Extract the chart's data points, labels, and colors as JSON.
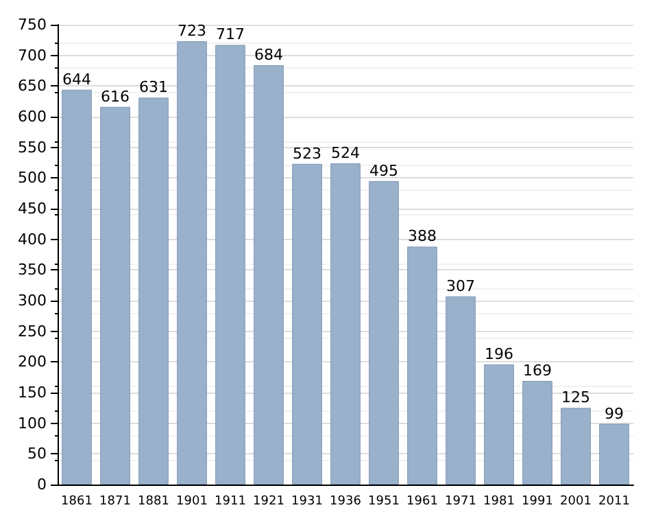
{
  "chart_data": {
    "type": "bar",
    "categories": [
      "1861",
      "1871",
      "1881",
      "1901",
      "1911",
      "1921",
      "1931",
      "1936",
      "1951",
      "1961",
      "1971",
      "1981",
      "1991",
      "2001",
      "2011"
    ],
    "values": [
      644,
      616,
      631,
      723,
      717,
      684,
      523,
      524,
      495,
      388,
      307,
      196,
      169,
      125,
      99
    ],
    "color": "#9ab1cc",
    "ylim": [
      0,
      750
    ],
    "yticks": [
      0,
      50,
      100,
      150,
      200,
      250,
      300,
      350,
      400,
      450,
      500,
      550,
      600,
      650,
      700,
      750
    ],
    "grid": "y",
    "data_labels": true
  }
}
